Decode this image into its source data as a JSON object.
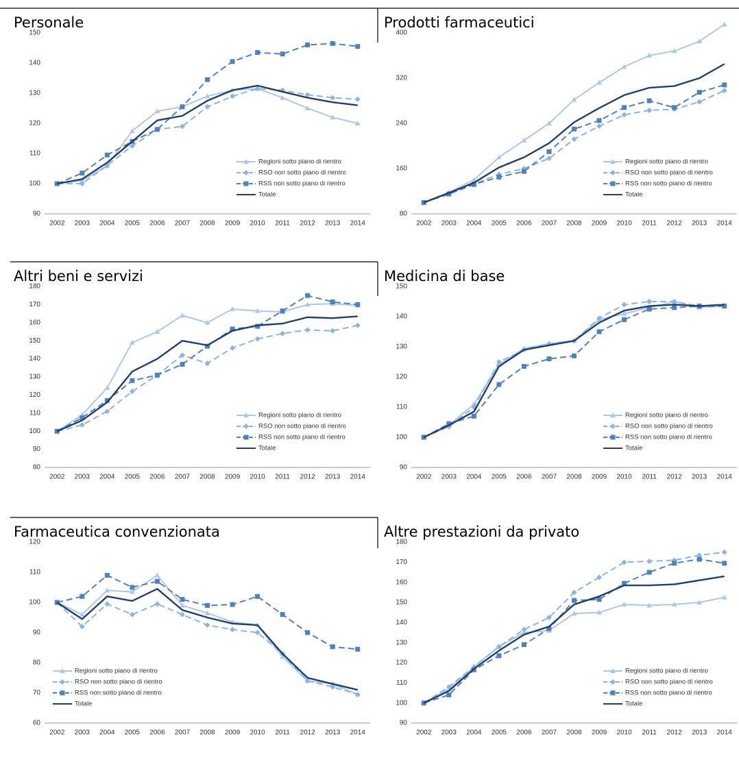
{
  "chart_data": [
    {
      "type": "line",
      "title": "Personale",
      "categories": [
        "2002",
        "2003",
        "2004",
        "2005",
        "2006",
        "2007",
        "2008",
        "2009",
        "2010",
        "2011",
        "2012",
        "2013",
        "2014"
      ],
      "ylim": [
        90,
        150
      ],
      "yticks": [
        90,
        100,
        110,
        120,
        130,
        140,
        150
      ],
      "grid": false,
      "legend": "lower right",
      "series": [
        {
          "name": "Regioni sotto piano di rientro",
          "color": "#aec7e6",
          "marker": "triangle",
          "dashed": false,
          "values": [
            100,
            101,
            106,
            117.5,
            124,
            125.5,
            129,
            131,
            131.5,
            128.5,
            125,
            122,
            120
          ]
        },
        {
          "name": "RSO non sotto piano di rientro",
          "color": "#8db3e2",
          "marker": "diamond",
          "dashed": true,
          "values": [
            100,
            100,
            106,
            112.5,
            118,
            119,
            125.5,
            129,
            131.5,
            131,
            129.5,
            128.5,
            128
          ]
        },
        {
          "name": "RSS non sotto piano di rientro",
          "color": "#4f81bd",
          "marker": "square",
          "dashed": true,
          "values": [
            100,
            103.5,
            109.5,
            114,
            118,
            125.5,
            134.5,
            140.5,
            143.5,
            143,
            146,
            146.5,
            145.5
          ]
        },
        {
          "name": "Totale",
          "color": "#1f3f6e",
          "marker": "none",
          "dashed": false,
          "values": [
            100,
            101.5,
            107,
            114,
            121,
            122.5,
            127.5,
            131,
            132.5,
            130.5,
            128.5,
            127,
            126
          ]
        }
      ]
    },
    {
      "type": "line",
      "title": "Prodotti farmaceutici",
      "categories": [
        "2002",
        "2003",
        "2004",
        "2005",
        "2006",
        "2007",
        "2008",
        "2009",
        "2010",
        "2011",
        "2012",
        "2013",
        "2014"
      ],
      "ylim": [
        80,
        400
      ],
      "yticks": [
        80,
        160,
        240,
        320,
        400
      ],
      "grid": false,
      "legend": "lower right",
      "series": [
        {
          "name": "Regioni sotto piano di rientro",
          "color": "#aec7e6",
          "marker": "triangle",
          "dashed": false,
          "values": [
            100,
            118,
            140,
            180,
            210,
            240,
            282,
            312,
            340,
            360,
            368,
            385,
            415
          ]
        },
        {
          "name": "RSO non sotto piano di rientro",
          "color": "#8db3e2",
          "marker": "diamond",
          "dashed": true,
          "values": [
            100,
            116,
            133,
            150,
            160,
            178,
            212,
            235,
            255,
            263,
            265,
            278,
            298
          ]
        },
        {
          "name": "RSS non sotto piano di rientro",
          "color": "#4f81bd",
          "marker": "square",
          "dashed": true,
          "values": [
            100,
            115,
            132,
            145,
            155,
            190,
            230,
            245,
            268,
            280,
            268,
            295,
            308
          ]
        },
        {
          "name": "Totale",
          "color": "#1f3f6e",
          "marker": "none",
          "dashed": false,
          "values": [
            100,
            117,
            135,
            162,
            180,
            205,
            242,
            267,
            290,
            303,
            306,
            320,
            345
          ]
        }
      ]
    },
    {
      "type": "line",
      "title": "Altri beni e servizi",
      "categories": [
        "2002",
        "2003",
        "2004",
        "2005",
        "2006",
        "2007",
        "2008",
        "2009",
        "2010",
        "2011",
        "2012",
        "2013",
        "2014"
      ],
      "ylim": [
        80,
        180
      ],
      "yticks": [
        80,
        90,
        100,
        110,
        120,
        130,
        140,
        150,
        160,
        170,
        180
      ],
      "grid": false,
      "legend": "lower right",
      "series": [
        {
          "name": "Regioni sotto piano di rientro",
          "color": "#aec7e6",
          "marker": "triangle",
          "dashed": false,
          "values": [
            100,
            109,
            124,
            149,
            155,
            164,
            160,
            167.5,
            166.5,
            166,
            170,
            170.5,
            169.5
          ]
        },
        {
          "name": "RSO non sotto piano di rientro",
          "color": "#8db3e2",
          "marker": "diamond",
          "dashed": true,
          "values": [
            100,
            103.5,
            111,
            122,
            131,
            142,
            137.5,
            146,
            151,
            154,
            156,
            155.5,
            158.5
          ]
        },
        {
          "name": "RSS non sotto piano di rientro",
          "color": "#4f81bd",
          "marker": "square",
          "dashed": true,
          "values": [
            100,
            107.5,
            117,
            128,
            131,
            137,
            147,
            156.5,
            158,
            166.5,
            175,
            171.5,
            170
          ]
        },
        {
          "name": "Totale",
          "color": "#1f3f6e",
          "marker": "none",
          "dashed": false,
          "values": [
            100,
            106,
            116,
            133,
            140,
            150,
            147.5,
            155.5,
            158.5,
            159.5,
            163,
            162.5,
            163.5
          ]
        }
      ]
    },
    {
      "type": "line",
      "title": "Medicina di base",
      "categories": [
        "2002",
        "2003",
        "2004",
        "2005",
        "2006",
        "2007",
        "2008",
        "2009",
        "2010",
        "2011",
        "2012",
        "2013",
        "2014"
      ],
      "ylim": [
        90,
        150
      ],
      "yticks": [
        90,
        100,
        110,
        120,
        130,
        140,
        150
      ],
      "grid": false,
      "legend": "lower right",
      "series": [
        {
          "name": "Regioni sotto piano di rientro",
          "color": "#aec7e6",
          "marker": "triangle",
          "dashed": false,
          "values": [
            100,
            104,
            111,
            124,
            129.5,
            131,
            132,
            139,
            141,
            143,
            145,
            143,
            143.5
          ]
        },
        {
          "name": "RSO non sotto piano di rientro",
          "color": "#8db3e2",
          "marker": "diamond",
          "dashed": true,
          "values": [
            100,
            103.5,
            110,
            125,
            129,
            131,
            132,
            139.5,
            144,
            145,
            145,
            143.5,
            143.5
          ]
        },
        {
          "name": "RSS non sotto piano di rientro",
          "color": "#4f81bd",
          "marker": "square",
          "dashed": true,
          "values": [
            100,
            104.5,
            107,
            117.5,
            123.5,
            126,
            127,
            135,
            139,
            142.5,
            143,
            143.5,
            143.5
          ]
        },
        {
          "name": "Totale",
          "color": "#1f3f6e",
          "marker": "none",
          "dashed": false,
          "values": [
            100,
            104,
            108.5,
            123.5,
            129,
            130.5,
            132,
            138,
            142,
            143.5,
            144,
            143.5,
            144
          ]
        }
      ]
    },
    {
      "type": "line",
      "title": "Farmaceutica convenzionata",
      "categories": [
        "2002",
        "2003",
        "2004",
        "2005",
        "2006",
        "2007",
        "2008",
        "2009",
        "2010",
        "2011",
        "2012",
        "2013",
        "2014"
      ],
      "ylim": [
        60,
        120
      ],
      "yticks": [
        60,
        70,
        80,
        90,
        100,
        110,
        120
      ],
      "grid": false,
      "legend": "lower left",
      "series": [
        {
          "name": "Regioni sotto piano di rientro",
          "color": "#aec7e6",
          "marker": "triangle",
          "dashed": false,
          "values": [
            100,
            96,
            104,
            103.5,
            109,
            99,
            96.5,
            93.5,
            92.5,
            82,
            74,
            73,
            69.5
          ]
        },
        {
          "name": "RSO non sotto piano di rientro",
          "color": "#8db3e2",
          "marker": "diamond",
          "dashed": true,
          "values": [
            100,
            92,
            99.5,
            96,
            99.5,
            96,
            92.5,
            91,
            90,
            83,
            74,
            72,
            69.5
          ]
        },
        {
          "name": "RSS non sotto piano di rientro",
          "color": "#4f81bd",
          "marker": "square",
          "dashed": true,
          "values": [
            100,
            102,
            109,
            105,
            107,
            101,
            99,
            99.3,
            102,
            96,
            90,
            85.3,
            84.5
          ]
        },
        {
          "name": "Totale",
          "color": "#1f3f6e",
          "marker": "none",
          "dashed": false,
          "values": [
            100,
            94.5,
            102,
            100.5,
            104.5,
            97.5,
            95,
            93,
            92.5,
            83,
            75,
            73,
            71
          ]
        }
      ]
    },
    {
      "type": "line",
      "title": "Altre prestazioni da privato",
      "categories": [
        "2002",
        "2003",
        "2004",
        "2005",
        "2006",
        "2007",
        "2008",
        "2009",
        "2010",
        "2011",
        "2012",
        "2013",
        "2014"
      ],
      "ylim": [
        90,
        180
      ],
      "yticks": [
        90,
        100,
        110,
        120,
        130,
        140,
        150,
        160,
        170,
        180
      ],
      "grid": false,
      "legend": "lower right",
      "series": [
        {
          "name": "Regioni sotto piano di rientro",
          "color": "#aec7e6",
          "marker": "triangle",
          "dashed": false,
          "values": [
            100,
            107,
            118,
            128,
            135,
            136,
            144.5,
            145,
            149,
            148.5,
            149,
            150,
            152.5
          ]
        },
        {
          "name": "RSO non sotto piano di rientro",
          "color": "#8db3e2",
          "marker": "diamond",
          "dashed": true,
          "values": [
            100,
            108,
            118,
            128,
            136.5,
            142.5,
            155,
            162.5,
            170,
            170.5,
            171,
            173.5,
            175
          ]
        },
        {
          "name": "RSS non sotto piano di rientro",
          "color": "#4f81bd",
          "marker": "square",
          "dashed": true,
          "values": [
            100,
            104,
            116.5,
            123.5,
            129,
            137,
            151,
            151.5,
            159.5,
            165,
            169.5,
            171.5,
            169.5
          ]
        },
        {
          "name": "Totale",
          "color": "#1f3f6e",
          "marker": "none",
          "dashed": false,
          "values": [
            100,
            106,
            117,
            126,
            134,
            138,
            149,
            153,
            158.5,
            158.5,
            159,
            161,
            163
          ]
        }
      ]
    }
  ]
}
